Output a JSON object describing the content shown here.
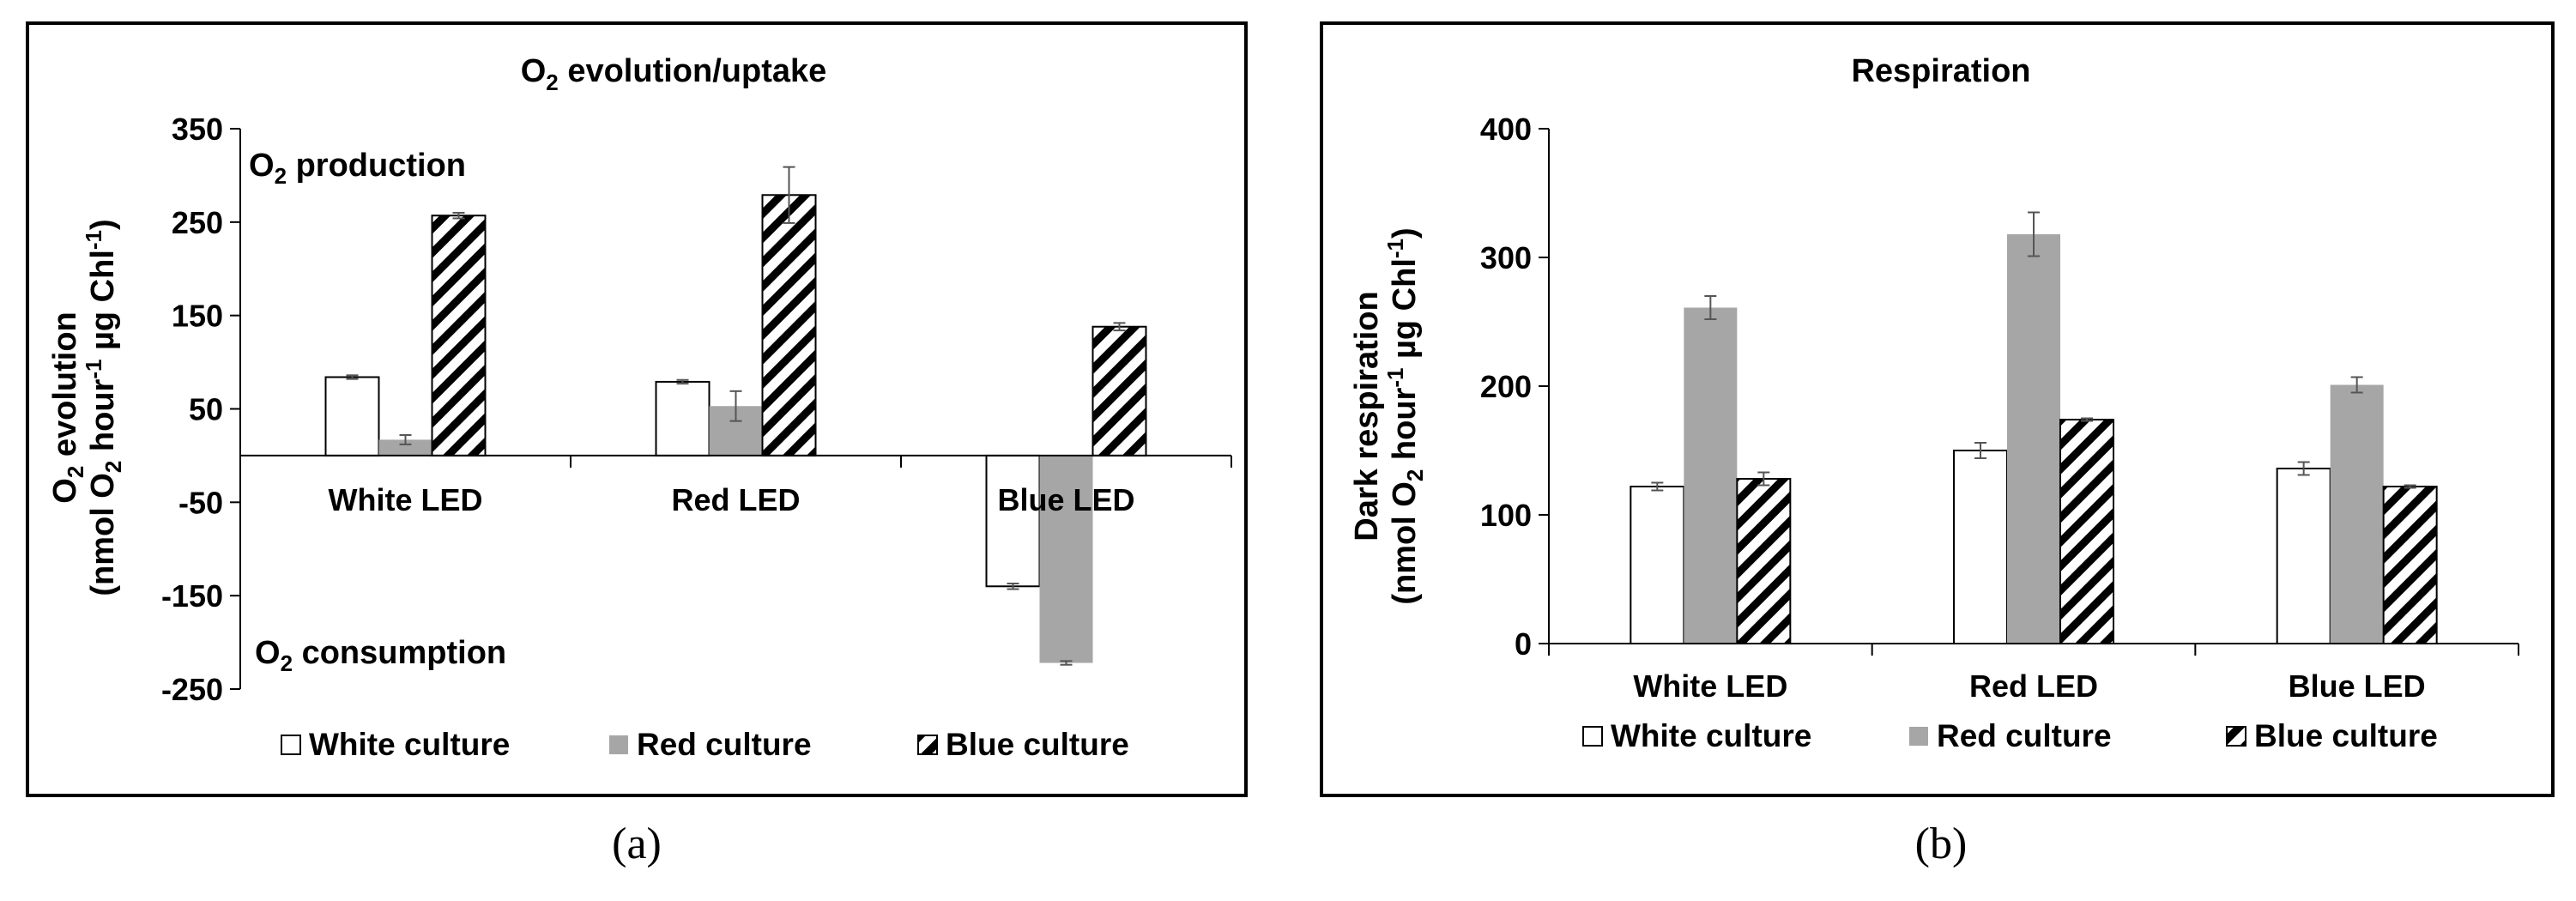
{
  "chart_data": [
    {
      "panel_label": "(a)",
      "type": "bar",
      "title_main": "O",
      "title_sub": "2",
      "title_rest": " evolution/uptake",
      "ylabel_line1_a": "O",
      "ylabel_line1_sub": "2",
      "ylabel_line1_b": " evolution",
      "ylabel_line2_a": "(nmol O",
      "ylabel_line2_sub": "2",
      "ylabel_line2_b": " hour",
      "ylabel_line2_sup1": "-1",
      "ylabel_line2_c": " µg Chl",
      "ylabel_line2_sup2": "-1",
      "ylabel_line2_d": ")",
      "ylim": [
        -250,
        350
      ],
      "yticks": [
        350,
        250,
        150,
        50,
        -50,
        -150,
        -250
      ],
      "categories": [
        "White LED",
        "Red LED",
        "Blue LED"
      ],
      "annotations": {
        "production_a": "O",
        "production_sub": "2",
        "production_b": " production",
        "consumption_a": "O",
        "consumption_sub": "2",
        "consumption_b": " consumption"
      },
      "series": [
        {
          "name": "White culture",
          "values": [
            84,
            79,
            -140
          ],
          "errors": [
            2,
            2,
            3
          ]
        },
        {
          "name": "Red culture",
          "values": [
            17,
            53,
            -222
          ],
          "errors": [
            5,
            16,
            2
          ]
        },
        {
          "name": "Blue culture",
          "values": [
            257,
            279,
            138
          ],
          "errors": [
            3,
            30,
            4
          ]
        }
      ],
      "grid": false,
      "legend_position": "bottom"
    },
    {
      "panel_label": "(b)",
      "type": "bar",
      "title": "Respiration",
      "ylabel_line1": "Dark respiration",
      "ylabel_line2_a": "(nmol O",
      "ylabel_line2_sub": "2",
      "ylabel_line2_b": " hour",
      "ylabel_line2_sup1": "-1",
      "ylabel_line2_c": " µg Chl",
      "ylabel_line2_sup2": "-1",
      "ylabel_line2_d": ")",
      "ylim": [
        0,
        400
      ],
      "yticks": [
        0,
        100,
        200,
        300,
        400
      ],
      "categories": [
        "White LED",
        "Red LED",
        "Blue LED"
      ],
      "series": [
        {
          "name": "White culture",
          "values": [
            122,
            150,
            136
          ],
          "errors": [
            3,
            6,
            5
          ]
        },
        {
          "name": "Red culture",
          "values": [
            261,
            318,
            201
          ],
          "errors": [
            9,
            17,
            6
          ]
        },
        {
          "name": "Blue culture",
          "values": [
            128,
            174,
            122
          ],
          "errors": [
            5,
            1,
            1
          ]
        }
      ],
      "grid": false,
      "legend_position": "bottom"
    }
  ],
  "colors": {
    "white_bar": "#ffffff",
    "red_bar": "#a6a6a6",
    "blue_bar_hatch": "#000000",
    "error_bar": "#555555",
    "frame": "#000000"
  }
}
